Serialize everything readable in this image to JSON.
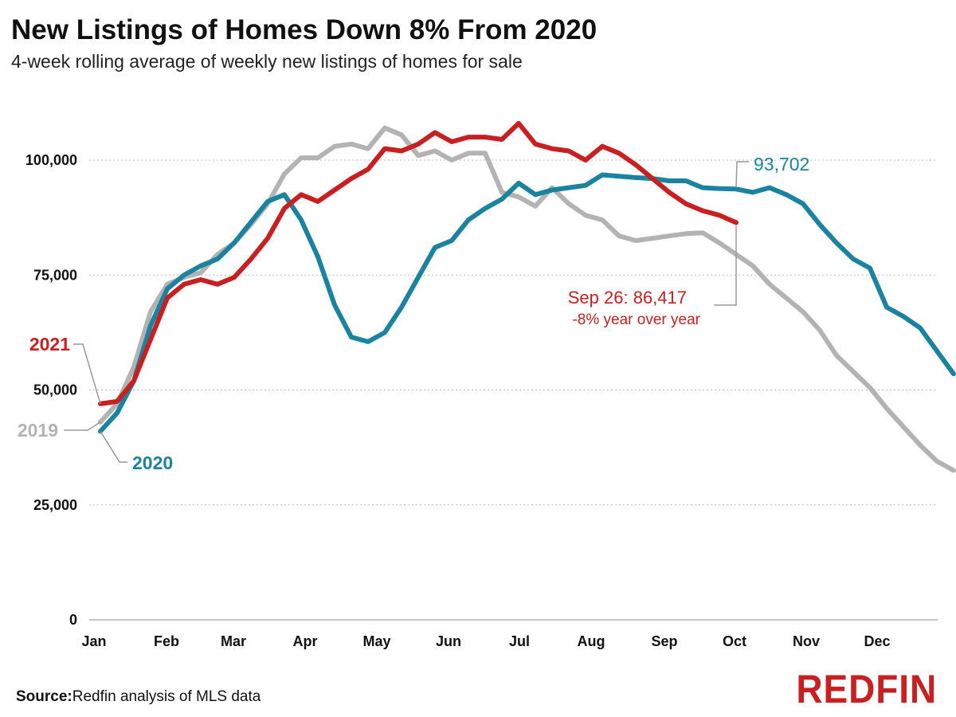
{
  "title": "New Listings of Homes Down 8% From 2020",
  "subtitle": "4-week rolling average of weekly new listings of homes for sale",
  "source_label": "Source:",
  "source_text": "Redfin analysis of MLS data",
  "logo_text": "REDFIN",
  "colors": {
    "2019": "#b3b3b3",
    "2020": "#1b82a0",
    "2021": "#c82021"
  },
  "chart_data": {
    "type": "line",
    "title": "New Listings of Homes Down 8% From 2020",
    "subtitle": "4-week rolling average of weekly new listings of homes for sale",
    "x_ticks": [
      "Jan",
      "Feb",
      "Mar",
      "Apr",
      "May",
      "Jun",
      "Jul",
      "Aug",
      "Sep",
      "Oct",
      "Nov",
      "Dec"
    ],
    "y_ticks": [
      0,
      25000,
      50000,
      75000,
      100000
    ],
    "y_tick_labels": [
      "0",
      "25,000",
      "50,000",
      "75,000",
      "100,000"
    ],
    "ylim": [
      0,
      110000
    ],
    "x_unit": "week of year",
    "grid": true,
    "series": [
      {
        "name": "2019",
        "x": [
          1,
          2,
          3,
          4,
          5,
          6,
          7,
          8,
          9,
          10,
          11,
          12,
          13,
          14,
          15,
          16,
          17,
          18,
          19,
          20,
          21,
          22,
          23,
          24,
          25,
          26,
          27,
          28,
          29,
          30,
          31,
          32,
          33,
          34,
          35,
          36,
          37,
          38,
          39,
          40,
          41,
          42,
          43,
          44,
          45,
          46,
          47,
          48,
          49,
          50,
          51,
          52
        ],
        "values": [
          43000,
          47000,
          55000,
          67000,
          73000,
          74500,
          75500,
          79500,
          82000,
          86000,
          90500,
          97000,
          100500,
          100500,
          103000,
          103500,
          102500,
          107000,
          105500,
          101000,
          102000,
          100000,
          101500,
          101500,
          93000,
          92000,
          90000,
          94000,
          90500,
          88000,
          87000,
          83500,
          82500,
          83000,
          83500,
          84000,
          84200,
          82000,
          79500,
          77000,
          73000,
          70000,
          67000,
          63000,
          57500,
          54000,
          50500,
          46000,
          42000,
          38000,
          34500,
          32500
        ]
      },
      {
        "name": "2020",
        "x": [
          1,
          2,
          3,
          4,
          5,
          6,
          7,
          8,
          9,
          10,
          11,
          12,
          13,
          14,
          15,
          16,
          17,
          18,
          19,
          20,
          21,
          22,
          23,
          24,
          25,
          26,
          27,
          28,
          29,
          30,
          31,
          32,
          33,
          34,
          35,
          36,
          37,
          38,
          39,
          40,
          41,
          42,
          43,
          44,
          45,
          46,
          47,
          48,
          49,
          50,
          51,
          52
        ],
        "values": [
          41000,
          45000,
          52000,
          64000,
          72000,
          75000,
          77000,
          78500,
          82000,
          86500,
          91000,
          92500,
          87000,
          79000,
          68500,
          61500,
          60500,
          62500,
          68000,
          74500,
          81000,
          82500,
          87000,
          89500,
          91500,
          95000,
          92500,
          93500,
          94000,
          94500,
          96800,
          96500,
          96200,
          96000,
          95500,
          95500,
          94000,
          93800,
          93702,
          93000,
          94000,
          92500,
          90500,
          86000,
          82000,
          78500,
          76500,
          68000,
          66000,
          63500,
          58500,
          53500
        ]
      },
      {
        "name": "2021",
        "x": [
          1,
          2,
          3,
          4,
          5,
          6,
          7,
          8,
          9,
          10,
          11,
          12,
          13,
          14,
          15,
          16,
          17,
          18,
          19,
          20,
          21,
          22,
          23,
          24,
          25,
          26,
          27,
          28,
          29,
          30,
          31,
          32,
          33,
          34,
          35,
          36,
          37,
          38,
          39
        ],
        "values": [
          47000,
          47500,
          52000,
          61000,
          70000,
          73000,
          74000,
          73000,
          74500,
          78500,
          83000,
          89500,
          92500,
          91000,
          93500,
          96000,
          98000,
          102500,
          102000,
          103500,
          106000,
          104000,
          105000,
          105000,
          104500,
          108000,
          103500,
          102500,
          102000,
          100000,
          103000,
          101500,
          99000,
          96000,
          93000,
          90500,
          89000,
          88000,
          86417
        ]
      }
    ],
    "annotations": {
      "label_2021": "2021",
      "label_2019": "2019",
      "label_2020": "2020",
      "value_2020": "93,702",
      "value_2021_line1": "Sep 26: 86,417",
      "value_2021_line2": "-8% year over year"
    }
  }
}
